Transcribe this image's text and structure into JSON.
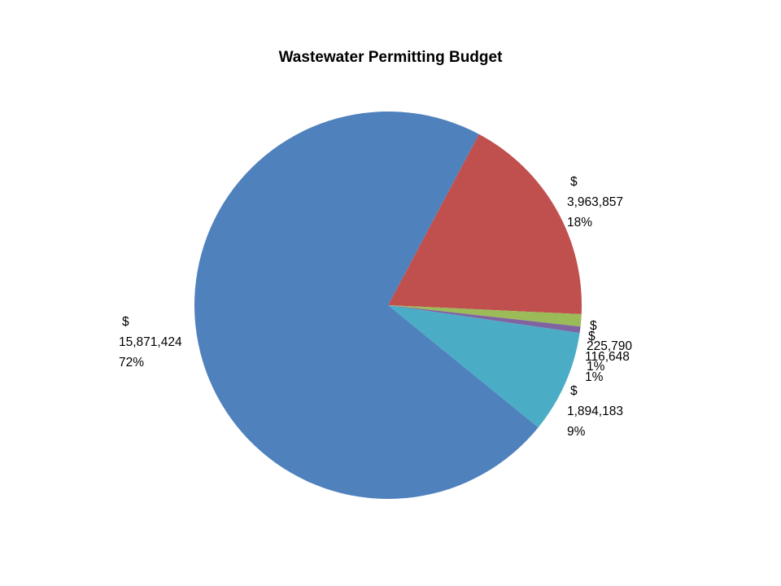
{
  "chart_data": {
    "type": "pie",
    "title": "Wastewater Permitting Budget",
    "legend": "none",
    "slices": [
      {
        "value": 3963857,
        "value_text": "3,963,857",
        "percent": "18%",
        "currency": "$",
        "color": "#C0504D"
      },
      {
        "value": 225790,
        "value_text": "225,790",
        "percent": "1%",
        "currency": "$",
        "color": "#9BBB59"
      },
      {
        "value": 116648,
        "value_text": "116,648",
        "percent": "1%",
        "currency": "$",
        "color": "#8064A2"
      },
      {
        "value": 1894183,
        "value_text": "1,894,183",
        "percent": "9%",
        "currency": "$",
        "color": "#4BACC6"
      },
      {
        "value": 15871424,
        "value_text": "15,871,424",
        "percent": "72%",
        "currency": "$",
        "color": "#4F81BD"
      }
    ]
  }
}
